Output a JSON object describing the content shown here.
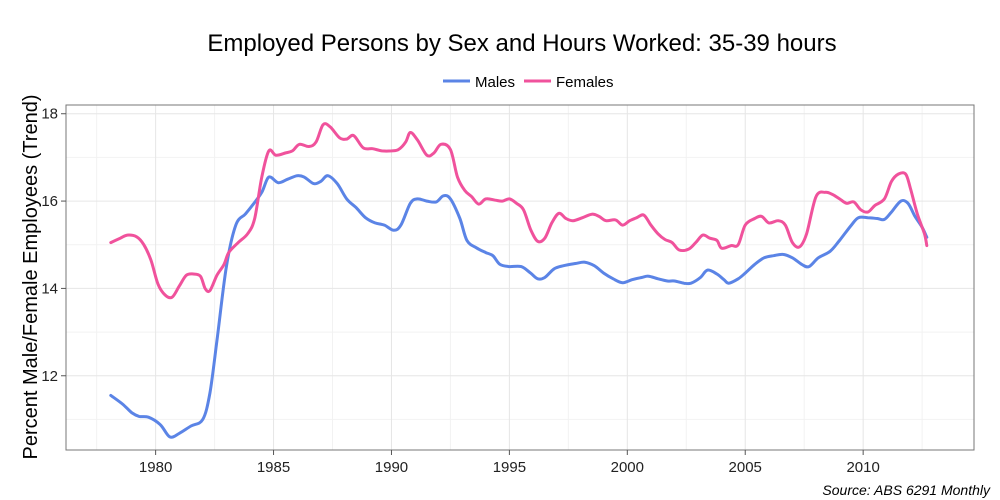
{
  "chart_data": {
    "type": "line",
    "title": "Employed Persons by Sex and Hours Worked: 35-39 hours",
    "xlabel": "",
    "ylabel": "Percent Male/Female Employees (Trend)",
    "source": "Source: ABS 6291 Monthly",
    "xlim": [
      1976.2,
      2014.7
    ],
    "ylim": [
      10.3,
      18.2
    ],
    "xticks": [
      1980,
      1985,
      1990,
      1995,
      2000,
      2005,
      2010
    ],
    "yticks": [
      12,
      14,
      16,
      18
    ],
    "grid": true,
    "legend_position": "top",
    "series": [
      {
        "name": "Males",
        "color": "#5b84e6",
        "points": [
          [
            1978.1,
            11.55
          ],
          [
            1978.6,
            11.35
          ],
          [
            1979.0,
            11.15
          ],
          [
            1979.3,
            11.07
          ],
          [
            1979.7,
            11.05
          ],
          [
            1980.2,
            10.88
          ],
          [
            1980.6,
            10.6
          ],
          [
            1981.0,
            10.68
          ],
          [
            1981.5,
            10.85
          ],
          [
            1982.0,
            11.0
          ],
          [
            1982.3,
            11.6
          ],
          [
            1982.6,
            12.8
          ],
          [
            1983.0,
            14.5
          ],
          [
            1983.4,
            15.45
          ],
          [
            1983.8,
            15.7
          ],
          [
            1984.1,
            15.9
          ],
          [
            1984.5,
            16.2
          ],
          [
            1984.8,
            16.55
          ],
          [
            1985.2,
            16.42
          ],
          [
            1985.6,
            16.5
          ],
          [
            1986.0,
            16.58
          ],
          [
            1986.3,
            16.55
          ],
          [
            1986.7,
            16.4
          ],
          [
            1987.0,
            16.45
          ],
          [
            1987.3,
            16.58
          ],
          [
            1987.7,
            16.4
          ],
          [
            1988.1,
            16.05
          ],
          [
            1988.5,
            15.85
          ],
          [
            1988.9,
            15.62
          ],
          [
            1989.3,
            15.5
          ],
          [
            1989.7,
            15.45
          ],
          [
            1990.1,
            15.33
          ],
          [
            1990.4,
            15.45
          ],
          [
            1990.8,
            15.95
          ],
          [
            1991.1,
            16.05
          ],
          [
            1991.5,
            16.0
          ],
          [
            1991.9,
            15.98
          ],
          [
            1992.2,
            16.12
          ],
          [
            1992.5,
            16.05
          ],
          [
            1992.9,
            15.6
          ],
          [
            1993.2,
            15.1
          ],
          [
            1993.6,
            14.93
          ],
          [
            1994.0,
            14.82
          ],
          [
            1994.3,
            14.75
          ],
          [
            1994.6,
            14.55
          ],
          [
            1995.0,
            14.5
          ],
          [
            1995.5,
            14.5
          ],
          [
            1995.9,
            14.35
          ],
          [
            1996.2,
            14.22
          ],
          [
            1996.5,
            14.25
          ],
          [
            1996.9,
            14.45
          ],
          [
            1997.3,
            14.52
          ],
          [
            1997.8,
            14.57
          ],
          [
            1998.2,
            14.6
          ],
          [
            1998.6,
            14.52
          ],
          [
            1999.0,
            14.35
          ],
          [
            1999.4,
            14.22
          ],
          [
            1999.8,
            14.13
          ],
          [
            2000.2,
            14.2
          ],
          [
            2000.6,
            14.25
          ],
          [
            2000.9,
            14.28
          ],
          [
            2001.3,
            14.22
          ],
          [
            2001.7,
            14.17
          ],
          [
            2002.0,
            14.17
          ],
          [
            2002.4,
            14.12
          ],
          [
            2002.7,
            14.12
          ],
          [
            2003.1,
            14.25
          ],
          [
            2003.4,
            14.42
          ],
          [
            2003.8,
            14.33
          ],
          [
            2004.1,
            14.2
          ],
          [
            2004.3,
            14.12
          ],
          [
            2004.7,
            14.22
          ],
          [
            2005.0,
            14.35
          ],
          [
            2005.4,
            14.55
          ],
          [
            2005.8,
            14.7
          ],
          [
            2006.2,
            14.75
          ],
          [
            2006.6,
            14.78
          ],
          [
            2007.0,
            14.7
          ],
          [
            2007.4,
            14.55
          ],
          [
            2007.7,
            14.5
          ],
          [
            2008.1,
            14.7
          ],
          [
            2008.6,
            14.85
          ],
          [
            2009.0,
            15.1
          ],
          [
            2009.5,
            15.45
          ],
          [
            2009.8,
            15.62
          ],
          [
            2010.2,
            15.62
          ],
          [
            2010.6,
            15.6
          ],
          [
            2010.9,
            15.58
          ],
          [
            2011.2,
            15.75
          ],
          [
            2011.6,
            16.0
          ],
          [
            2011.9,
            15.95
          ],
          [
            2012.2,
            15.65
          ],
          [
            2012.5,
            15.4
          ],
          [
            2012.7,
            15.17
          ]
        ]
      },
      {
        "name": "Females",
        "color": "#f0529c",
        "points": [
          [
            1978.1,
            15.05
          ],
          [
            1978.5,
            15.15
          ],
          [
            1978.8,
            15.22
          ],
          [
            1979.2,
            15.18
          ],
          [
            1979.5,
            15.0
          ],
          [
            1979.8,
            14.65
          ],
          [
            1980.1,
            14.1
          ],
          [
            1980.4,
            13.85
          ],
          [
            1980.7,
            13.8
          ],
          [
            1981.0,
            14.05
          ],
          [
            1981.3,
            14.3
          ],
          [
            1981.6,
            14.33
          ],
          [
            1981.9,
            14.28
          ],
          [
            1982.1,
            14.0
          ],
          [
            1982.3,
            13.95
          ],
          [
            1982.6,
            14.3
          ],
          [
            1982.9,
            14.55
          ],
          [
            1983.1,
            14.82
          ],
          [
            1983.5,
            15.05
          ],
          [
            1983.9,
            15.25
          ],
          [
            1984.2,
            15.6
          ],
          [
            1984.5,
            16.55
          ],
          [
            1984.8,
            17.15
          ],
          [
            1985.1,
            17.05
          ],
          [
            1985.5,
            17.1
          ],
          [
            1985.8,
            17.15
          ],
          [
            1986.1,
            17.3
          ],
          [
            1986.5,
            17.25
          ],
          [
            1986.8,
            17.35
          ],
          [
            1987.1,
            17.75
          ],
          [
            1987.4,
            17.7
          ],
          [
            1987.8,
            17.45
          ],
          [
            1988.1,
            17.42
          ],
          [
            1988.4,
            17.5
          ],
          [
            1988.8,
            17.22
          ],
          [
            1989.2,
            17.2
          ],
          [
            1989.6,
            17.15
          ],
          [
            1990.0,
            17.15
          ],
          [
            1990.3,
            17.18
          ],
          [
            1990.6,
            17.35
          ],
          [
            1990.8,
            17.57
          ],
          [
            1991.1,
            17.4
          ],
          [
            1991.5,
            17.05
          ],
          [
            1991.8,
            17.1
          ],
          [
            1992.1,
            17.3
          ],
          [
            1992.5,
            17.18
          ],
          [
            1992.8,
            16.55
          ],
          [
            1993.1,
            16.25
          ],
          [
            1993.4,
            16.1
          ],
          [
            1993.7,
            15.93
          ],
          [
            1994.0,
            16.05
          ],
          [
            1994.4,
            16.02
          ],
          [
            1994.7,
            16.0
          ],
          [
            1995.0,
            16.05
          ],
          [
            1995.3,
            15.95
          ],
          [
            1995.6,
            15.8
          ],
          [
            1995.9,
            15.35
          ],
          [
            1996.2,
            15.08
          ],
          [
            1996.5,
            15.15
          ],
          [
            1996.8,
            15.5
          ],
          [
            1997.1,
            15.72
          ],
          [
            1997.4,
            15.6
          ],
          [
            1997.7,
            15.55
          ],
          [
            1998.1,
            15.62
          ],
          [
            1998.5,
            15.7
          ],
          [
            1998.8,
            15.65
          ],
          [
            1999.1,
            15.55
          ],
          [
            1999.5,
            15.57
          ],
          [
            1999.8,
            15.45
          ],
          [
            2000.1,
            15.55
          ],
          [
            2000.4,
            15.62
          ],
          [
            2000.7,
            15.68
          ],
          [
            2001.0,
            15.45
          ],
          [
            2001.3,
            15.25
          ],
          [
            2001.6,
            15.12
          ],
          [
            2001.9,
            15.05
          ],
          [
            2002.2,
            14.88
          ],
          [
            2002.6,
            14.9
          ],
          [
            2002.9,
            15.05
          ],
          [
            2003.2,
            15.22
          ],
          [
            2003.5,
            15.15
          ],
          [
            2003.8,
            15.1
          ],
          [
            2004.0,
            14.92
          ],
          [
            2004.4,
            14.98
          ],
          [
            2004.7,
            15.0
          ],
          [
            2005.0,
            15.45
          ],
          [
            2005.4,
            15.6
          ],
          [
            2005.7,
            15.65
          ],
          [
            2006.0,
            15.5
          ],
          [
            2006.4,
            15.55
          ],
          [
            2006.7,
            15.45
          ],
          [
            2007.0,
            15.05
          ],
          [
            2007.3,
            14.95
          ],
          [
            2007.6,
            15.25
          ],
          [
            2008.0,
            16.1
          ],
          [
            2008.4,
            16.2
          ],
          [
            2008.7,
            16.15
          ],
          [
            2009.0,
            16.05
          ],
          [
            2009.3,
            15.95
          ],
          [
            2009.6,
            15.98
          ],
          [
            2009.9,
            15.8
          ],
          [
            2010.2,
            15.75
          ],
          [
            2010.5,
            15.9
          ],
          [
            2010.9,
            16.05
          ],
          [
            2011.2,
            16.45
          ],
          [
            2011.5,
            16.62
          ],
          [
            2011.8,
            16.62
          ],
          [
            2012.0,
            16.3
          ],
          [
            2012.3,
            15.7
          ],
          [
            2012.6,
            15.25
          ],
          [
            2012.7,
            14.98
          ]
        ]
      }
    ]
  }
}
